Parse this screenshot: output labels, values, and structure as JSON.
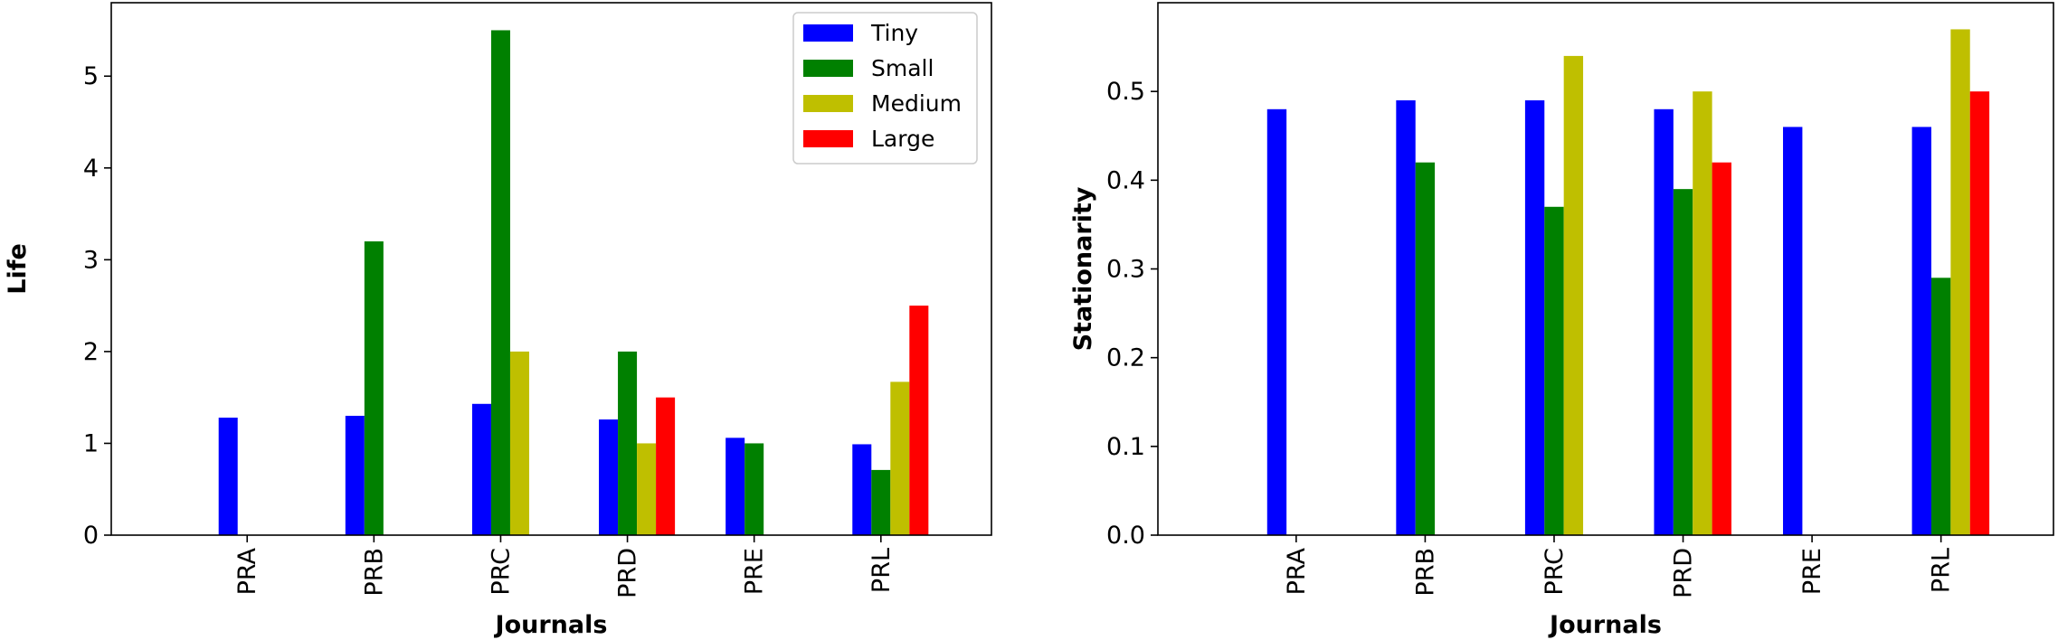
{
  "chart_data": [
    {
      "type": "bar",
      "categories": [
        "PRA",
        "PRB",
        "PRC",
        "PRD",
        "PRE",
        "PRL"
      ],
      "xlabel": "Journals",
      "ylabel": "Life",
      "ylim": [
        0,
        5.8
      ],
      "yticks": [
        0,
        1,
        2,
        3,
        4,
        5
      ],
      "ytick_labels": [
        "0",
        "1",
        "2",
        "3",
        "4",
        "5"
      ],
      "legend_position": "top-right",
      "series": [
        {
          "name": "Tiny",
          "color": "#0000ff",
          "values": [
            1.28,
            1.3,
            1.43,
            1.26,
            1.06,
            0.99
          ]
        },
        {
          "name": "Small",
          "color": "#008000",
          "values": [
            0,
            3.2,
            5.5,
            2.0,
            1.0,
            0.71
          ]
        },
        {
          "name": "Medium",
          "color": "#bfbf00",
          "values": [
            0,
            0,
            2.0,
            1.0,
            0,
            1.67
          ]
        },
        {
          "name": "Large",
          "color": "#ff0000",
          "values": [
            0,
            0,
            0,
            1.5,
            0,
            2.5
          ]
        }
      ]
    },
    {
      "type": "bar",
      "categories": [
        "PRA",
        "PRB",
        "PRC",
        "PRD",
        "PRE",
        "PRL"
      ],
      "xlabel": "Journals",
      "ylabel": "Stationarity",
      "ylim": [
        0,
        0.6
      ],
      "yticks": [
        0,
        0.1,
        0.2,
        0.3,
        0.4,
        0.5
      ],
      "ytick_labels": [
        "0.0",
        "0.1",
        "0.2",
        "0.3",
        "0.4",
        "0.5"
      ],
      "series": [
        {
          "name": "Tiny",
          "color": "#0000ff",
          "values": [
            0.48,
            0.49,
            0.49,
            0.48,
            0.46,
            0.46
          ]
        },
        {
          "name": "Small",
          "color": "#008000",
          "values": [
            0,
            0.42,
            0.37,
            0.39,
            0,
            0.29
          ]
        },
        {
          "name": "Medium",
          "color": "#bfbf00",
          "values": [
            0,
            0,
            0.54,
            0.5,
            0,
            0.57
          ]
        },
        {
          "name": "Large",
          "color": "#ff0000",
          "values": [
            0,
            0,
            0,
            0.42,
            0,
            0.5
          ]
        }
      ]
    }
  ]
}
